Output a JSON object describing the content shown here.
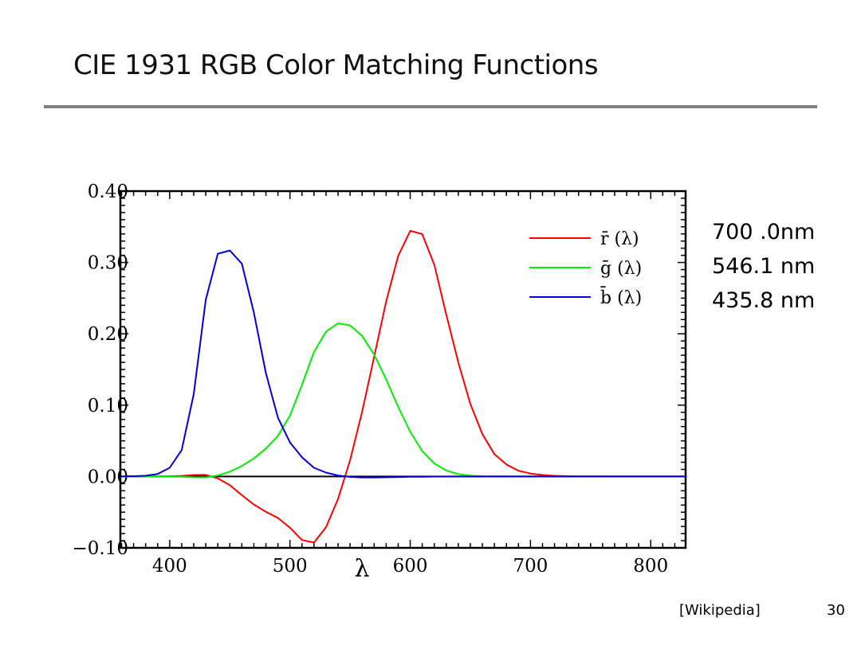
{
  "slide": {
    "title": "CIE 1931 RGB Color Matching Functions",
    "notes": [
      "700 .0nm",
      "546.1 nm",
      "435.8 nm"
    ],
    "source": "[Wikipedia]",
    "page_number": "30"
  },
  "chart_data": {
    "type": "line",
    "title": "",
    "xlabel": "λ",
    "ylabel": "",
    "xlim": [
      359,
      829
    ],
    "ylim": [
      -0.1,
      0.4
    ],
    "x_ticks": [
      400,
      500,
      600,
      700,
      800
    ],
    "x_tick_labels": [
      "400",
      "500",
      "600",
      "700",
      "800"
    ],
    "y_ticks": [
      -0.1,
      0.0,
      0.1,
      0.2,
      0.3,
      0.4
    ],
    "y_tick_labels": [
      "−0.10",
      "0.00",
      "0.10",
      "0.20",
      "0.30",
      "0.40"
    ],
    "grid": false,
    "legend_position": "top-right",
    "x": [
      360,
      370,
      380,
      390,
      400,
      410,
      420,
      430,
      440,
      450,
      460,
      470,
      480,
      490,
      500,
      510,
      520,
      530,
      540,
      550,
      560,
      570,
      580,
      590,
      600,
      610,
      620,
      630,
      640,
      650,
      660,
      670,
      680,
      690,
      700,
      710,
      720,
      730,
      740,
      750,
      760,
      780,
      800,
      830
    ],
    "series": [
      {
        "name": "r̄ (λ)",
        "color": "#ff0000",
        "values": [
          0,
          1e-05,
          3e-05,
          0.0001,
          0.0003,
          0.00084,
          0.00211,
          0.00218,
          -0.00261,
          -0.01213,
          -0.02608,
          -0.03933,
          -0.04939,
          -0.05814,
          -0.07173,
          -0.08901,
          -0.09264,
          -0.07101,
          -0.03152,
          0.02279,
          0.0906,
          0.16768,
          0.24526,
          0.30928,
          0.34429,
          0.33971,
          0.29708,
          0.22677,
          0.15968,
          0.10167,
          0.05932,
          0.03149,
          0.01687,
          0.00819,
          0.0041,
          0.0021,
          0.00105,
          0.00052,
          0.00025,
          0.00012,
          6e-05,
          1e-05,
          0,
          0
        ]
      },
      {
        "name": "ḡ (λ)",
        "color": "#00ee00",
        "values": [
          0,
          0,
          -1e-05,
          -4e-05,
          -0.00014,
          -0.00041,
          -0.0011,
          -0.00119,
          0.00149,
          0.00678,
          0.01485,
          0.02538,
          0.03914,
          0.05689,
          0.08536,
          0.1286,
          0.17468,
          0.20317,
          0.21466,
          0.21178,
          0.19702,
          0.17087,
          0.1361,
          0.09754,
          0.06246,
          0.03557,
          0.01828,
          0.00833,
          0.00334,
          0.00116,
          0.00037,
          0.00011,
          3e-05,
          0,
          0,
          0,
          0,
          0,
          0,
          0,
          0,
          0,
          0,
          0
        ]
      },
      {
        "name": "b̄ (λ)",
        "color": "#0000dd",
        "values": [
          0.0001,
          0.0004,
          0.00117,
          0.00359,
          0.01214,
          0.03707,
          0.11541,
          0.24769,
          0.31228,
          0.3167,
          0.29821,
          0.22991,
          0.14494,
          0.08257,
          0.04776,
          0.02698,
          0.01221,
          0.00549,
          0.00146,
          -0.00058,
          -0.0013,
          -0.00135,
          -0.00108,
          -0.00079,
          -0.00049,
          -0.0003,
          -0.00015,
          -8e-05,
          -3e-05,
          -1e-05,
          0,
          0,
          0,
          0,
          0,
          0,
          0,
          0,
          0,
          0,
          0,
          0,
          0,
          0
        ]
      }
    ]
  }
}
